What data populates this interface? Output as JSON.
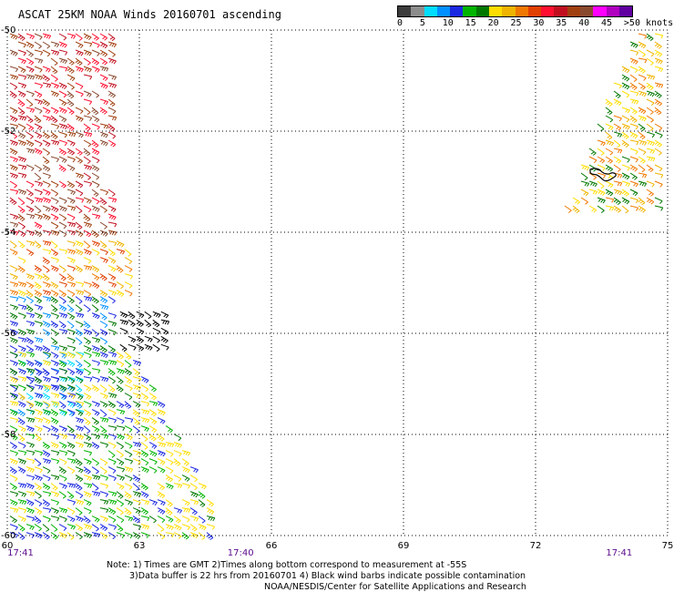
{
  "title": "ASCAT 25KM NOAA Winds 20160701 ascending",
  "colorbar": {
    "colors": [
      "#3c3c3c",
      "#8c8c8c",
      "#00ddff",
      "#0090ff",
      "#1a28e0",
      "#00b400",
      "#007800",
      "#ffdd00",
      "#f0b400",
      "#f07800",
      "#e04000",
      "#ff1030",
      "#c01020",
      "#a04010",
      "#8a4a30",
      "#ff00ff",
      "#b000c0",
      "#6000a0"
    ],
    "labels": [
      "0",
      "5",
      "10",
      "15",
      "20",
      "25",
      "30",
      "35",
      "40",
      "45",
      ">50 knots"
    ],
    "label_values": [
      0,
      5,
      10,
      15,
      20,
      25,
      30,
      35,
      40,
      45,
      50
    ]
  },
  "map": {
    "lon_ticks": [
      "60",
      "63",
      "66",
      "69",
      "72",
      "75"
    ],
    "lat_ticks": [
      "-50",
      "-52",
      "-54",
      "-56",
      "-58",
      "-60"
    ],
    "lon_range": [
      60,
      75
    ],
    "lat_range": [
      -50,
      -60
    ],
    "time_labels": [
      {
        "text": "17:41",
        "lon": 60.3
      },
      {
        "text": "17:40",
        "lon": 65.3
      },
      {
        "text": "17:41",
        "lon": 73.9
      }
    ],
    "swaths": [
      {
        "name": "upper-left-strong",
        "lon": [
          60.0,
          62.6
        ],
        "lat": [
          -50.0,
          -54.1
        ],
        "colors": [
          "#8a4a30",
          "#a04010",
          "#c01020",
          "#ff1030"
        ]
      },
      {
        "name": "upper-left-mod",
        "lon": [
          60.0,
          62.8
        ],
        "lat": [
          -54.1,
          -55.2
        ],
        "colors": [
          "#ffdd00",
          "#f0b400",
          "#f07800",
          "#e04000"
        ]
      },
      {
        "name": "mid-left-blue",
        "lon": [
          60.0,
          62.5
        ],
        "lat": [
          -55.2,
          -56.3
        ],
        "colors": [
          "#1a28e0",
          "#0090ff",
          "#007800"
        ]
      },
      {
        "name": "contaminated",
        "lon": [
          62.5,
          63.8
        ],
        "lat": [
          -55.5,
          -56.3
        ],
        "colors": [
          "#000000"
        ]
      },
      {
        "name": "lower-left-blue",
        "lon": [
          60.0,
          61.8
        ],
        "lat": [
          -56.3,
          -57.6
        ],
        "colors": [
          "#0090ff",
          "#1a28e0",
          "#00ddff"
        ]
      },
      {
        "name": "lower-green",
        "lon": [
          60.0,
          64.8
        ],
        "lat": [
          -56.3,
          -60.0
        ],
        "colors": [
          "#00b400",
          "#007800",
          "#1a28e0",
          "#ffdd00"
        ]
      },
      {
        "name": "upper-right",
        "lon": [
          72.6,
          75.0
        ],
        "lat": [
          -50.0,
          -53.6
        ],
        "colors": [
          "#ffdd00",
          "#f0b400",
          "#f07800",
          "#007800"
        ]
      }
    ],
    "island": "island-outline"
  },
  "notes": {
    "line1": "Note: 1) Times are GMT 2)Times along bottom correspond to measurement at -55S",
    "line2": "3)Data buffer is 22 hrs from 20160701 4) Black wind barbs indicate possible contamination",
    "line3": "NOAA/NESDIS/Center for Satellite Applications and Research"
  }
}
